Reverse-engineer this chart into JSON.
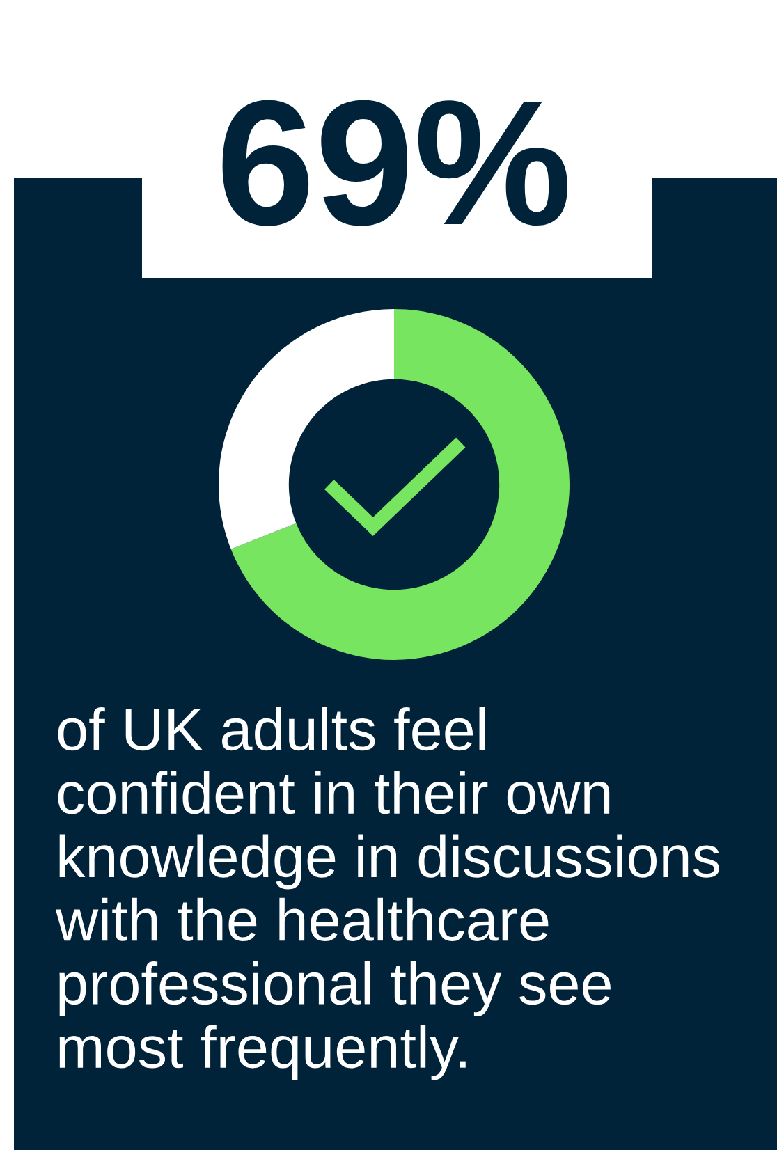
{
  "chart_data": {
    "type": "donut",
    "title": "69%",
    "categories": [
      null,
      null
    ],
    "values": [
      69,
      31
    ],
    "colors": [
      "#77e55f",
      "#ffffff"
    ],
    "annotations": [
      "of UK adults feel\nconfident in their own\nknowledge in discussions\nwith the healthcare\nprofessional they see\nmost frequently."
    ]
  }
}
